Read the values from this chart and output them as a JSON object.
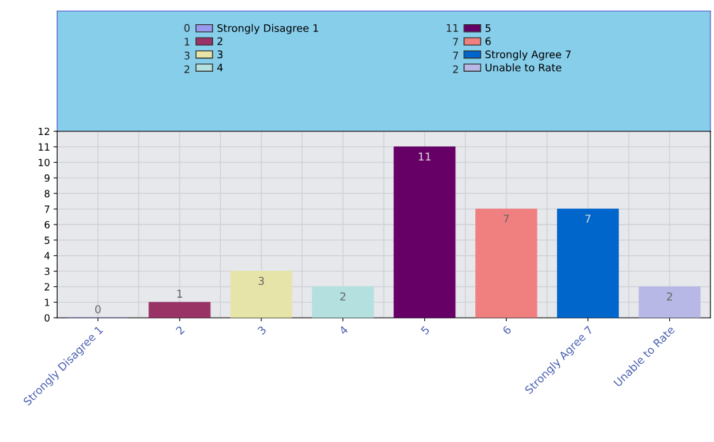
{
  "chart_data": {
    "type": "bar",
    "stacked": true,
    "categories": [
      "Strongly Disagree 1",
      "2",
      "3",
      "4",
      "5",
      "6",
      "Strongly Agree 7",
      "Unable to Rate"
    ],
    "series": [
      {
        "name": "Strongly Disagree 1",
        "color": "#9999ee",
        "values": [
          0,
          null,
          null,
          null,
          null,
          null,
          null,
          null
        ]
      },
      {
        "name": "2",
        "color": "#993366",
        "values": [
          null,
          1,
          null,
          null,
          null,
          null,
          null,
          null
        ]
      },
      {
        "name": "3",
        "color": "#e6e4a8",
        "values": [
          null,
          null,
          3,
          null,
          null,
          null,
          null,
          null
        ]
      },
      {
        "name": "4",
        "color": "#b4e0e0",
        "values": [
          null,
          null,
          null,
          2,
          null,
          null,
          null,
          null
        ]
      },
      {
        "name": "5",
        "color": "#660066",
        "values": [
          null,
          null,
          null,
          null,
          11,
          null,
          null,
          null
        ]
      },
      {
        "name": "6",
        "color": "#f08080",
        "values": [
          null,
          null,
          null,
          null,
          null,
          7,
          null,
          null
        ]
      },
      {
        "name": "Strongly Agree 7",
        "color": "#0066cc",
        "values": [
          null,
          null,
          null,
          null,
          null,
          null,
          7,
          null
        ]
      },
      {
        "name": "Unable to Rate",
        "color": "#b8b8e6",
        "values": [
          null,
          null,
          null,
          null,
          null,
          null,
          null,
          2
        ]
      }
    ],
    "annotations": [
      "0",
      "1",
      "3",
      "2",
      "11",
      "7",
      "7",
      "2"
    ],
    "ylim": [
      0,
      12
    ],
    "yticks": [
      0,
      1,
      2,
      3,
      4,
      5,
      6,
      7,
      8,
      9,
      10,
      11,
      12
    ],
    "grid": true,
    "data_labels": true,
    "legend": "top"
  }
}
